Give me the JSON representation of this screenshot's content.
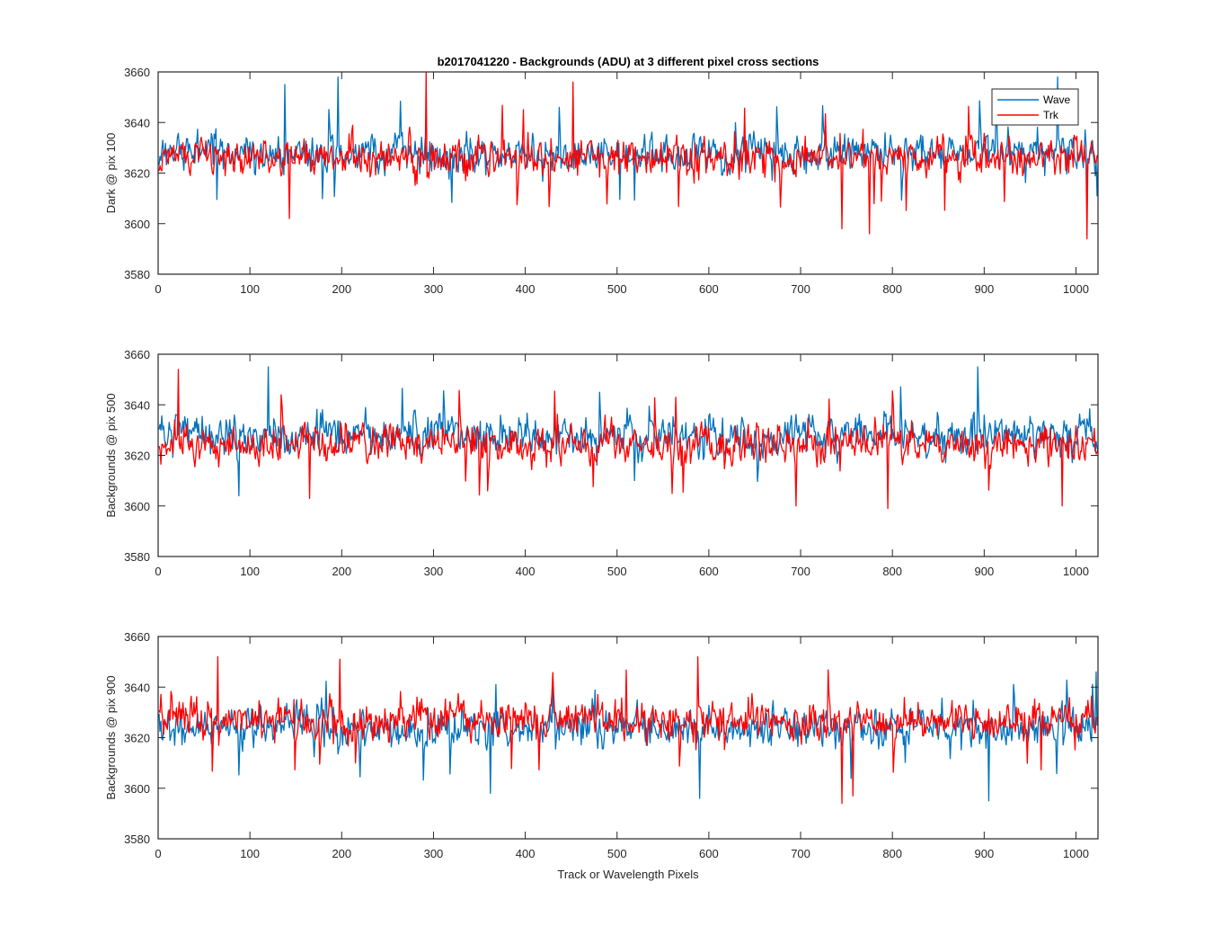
{
  "figure": {
    "title": "b2017041220 - Backgrounds (ADU) at 3 different pixel cross sections",
    "xlabel": "Track or Wavelength Pixels"
  },
  "colors": {
    "wave": "#0072bd",
    "trk": "#ff0000",
    "axes": "#262626",
    "background": "#ffffff"
  },
  "chart_data": [
    {
      "type": "line",
      "title": "b2017041220 - Backgrounds (ADU) at 3 different pixel cross sections",
      "xlabel": "",
      "ylabel": "Dark @ pix 100",
      "xlim": [
        0,
        1024
      ],
      "ylim": [
        3580,
        3660
      ],
      "xticks": [
        "0",
        "100",
        "200",
        "300",
        "400",
        "500",
        "600",
        "700",
        "800",
        "900",
        "1000"
      ],
      "yticks": [
        "3580",
        "3600",
        "3620",
        "3640",
        "3660"
      ],
      "grid": false,
      "legend": {
        "position": "top-right",
        "entries": [
          "Wave",
          "Trk"
        ]
      },
      "series": [
        {
          "name": "Wave",
          "color": "#0072bd",
          "mean": 3628,
          "spread": 6.5,
          "x_start": 1,
          "x_end": 1024,
          "extremes": [
            [
              138,
              3655
            ],
            [
              196,
              3658
            ],
            [
              980,
              3658
            ],
            [
              1023,
              3611
            ]
          ]
        },
        {
          "name": "Trk",
          "color": "#ff0000",
          "mean": 3626,
          "spread": 6.5,
          "x_start": 1,
          "x_end": 1024,
          "extremes": [
            [
              143,
              3602
            ],
            [
              292,
              3660
            ],
            [
              452,
              3656
            ],
            [
              745,
              3598
            ],
            [
              775,
              3596
            ],
            [
              1012,
              3594
            ]
          ]
        }
      ]
    },
    {
      "type": "line",
      "xlabel": "",
      "ylabel": "Backgrounds @ pix 500",
      "xlim": [
        0,
        1024
      ],
      "ylim": [
        3580,
        3660
      ],
      "xticks": [
        "0",
        "100",
        "200",
        "300",
        "400",
        "500",
        "600",
        "700",
        "800",
        "900",
        "1000"
      ],
      "yticks": [
        "3580",
        "3600",
        "3620",
        "3640",
        "3660"
      ],
      "grid": false,
      "series": [
        {
          "name": "Wave",
          "color": "#0072bd",
          "mean": 3628,
          "spread": 6.5,
          "x_start": 1,
          "x_end": 1024,
          "extremes": [
            [
              120,
              3655
            ],
            [
              893,
              3655
            ],
            [
              88,
              3604
            ]
          ]
        },
        {
          "name": "Trk",
          "color": "#ff0000",
          "mean": 3625,
          "spread": 6.5,
          "x_start": 1,
          "x_end": 1024,
          "extremes": [
            [
              22,
              3654
            ],
            [
              165,
              3603
            ],
            [
              695,
              3600
            ],
            [
              795,
              3599
            ],
            [
              985,
              3600
            ]
          ]
        }
      ]
    },
    {
      "type": "line",
      "xlabel": "Track or Wavelength Pixels",
      "ylabel": "Backgrounds @ pix 900",
      "xlim": [
        0,
        1024
      ],
      "ylim": [
        3580,
        3660
      ],
      "xticks": [
        "0",
        "100",
        "200",
        "300",
        "400",
        "500",
        "600",
        "700",
        "800",
        "900",
        "1000"
      ],
      "yticks": [
        "3580",
        "3600",
        "3620",
        "3640",
        "3660"
      ],
      "grid": false,
      "series": [
        {
          "name": "Wave",
          "color": "#0072bd",
          "mean": 3624,
          "spread": 6.5,
          "x_start": 1,
          "x_end": 1024,
          "extremes": [
            [
              362,
              3598
            ],
            [
              590,
              3596
            ],
            [
              905,
              3595
            ],
            [
              1022,
              3646
            ]
          ]
        },
        {
          "name": "Trk",
          "color": "#ff0000",
          "mean": 3627,
          "spread": 6.5,
          "x_start": 1,
          "x_end": 1024,
          "extremes": [
            [
              65,
              3652
            ],
            [
              198,
              3651
            ],
            [
              588,
              3652
            ],
            [
              745,
              3594
            ],
            [
              757,
              3597
            ]
          ]
        }
      ]
    }
  ]
}
